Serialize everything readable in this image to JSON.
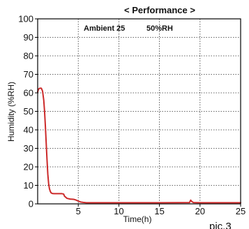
{
  "chart_data": {
    "type": "line",
    "title": "< Performance >",
    "annotations": [
      "Ambient 25",
      "50%RH"
    ],
    "caption": "pic.3",
    "xlabel": "Time(h)",
    "ylabel": "Humidity (%RH)",
    "xlim": [
      0,
      25
    ],
    "ylim": [
      0,
      100
    ],
    "x_ticks": [
      5,
      10,
      15,
      20,
      25
    ],
    "y_ticks": [
      0,
      10,
      20,
      30,
      40,
      50,
      60,
      70,
      80,
      90,
      100
    ],
    "grid": true,
    "series_color": "#cc2a2a",
    "series": [
      {
        "x": [
          0.0,
          0.1,
          0.25,
          0.45,
          0.6,
          0.75,
          0.85,
          0.95,
          1.05,
          1.15,
          1.25,
          1.35,
          1.45,
          1.55,
          1.65,
          1.8,
          2.0,
          2.2,
          2.6,
          3.0,
          3.2,
          3.3,
          3.6,
          4.0,
          4.3,
          4.5,
          4.7,
          5.0,
          5.3,
          5.6,
          6.0,
          10.0,
          15.0,
          18.7,
          18.85,
          19.0,
          19.2,
          20.0,
          25.0
        ],
        "y": [
          60.5,
          62.0,
          62.5,
          62.5,
          61.0,
          56.0,
          50.0,
          42.0,
          33.0,
          24.0,
          16.0,
          11.0,
          8.2,
          6.8,
          6.0,
          5.6,
          5.5,
          5.5,
          5.5,
          5.5,
          5.3,
          4.2,
          3.0,
          2.6,
          2.5,
          2.4,
          2.1,
          1.5,
          1.0,
          0.8,
          0.6,
          0.6,
          0.6,
          0.7,
          2.0,
          1.2,
          0.7,
          0.6,
          0.6
        ]
      }
    ]
  }
}
